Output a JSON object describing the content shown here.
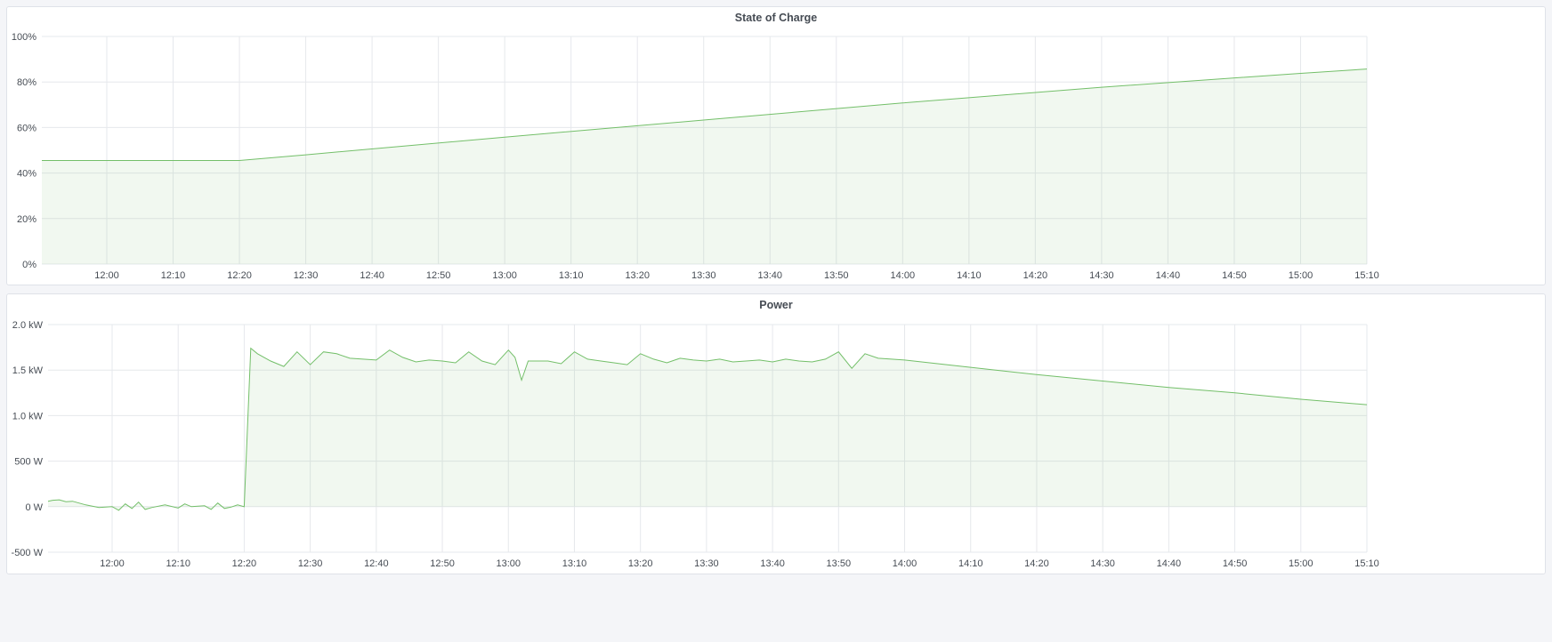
{
  "colors": {
    "line": "#73bf69",
    "fill": "rgba(115,191,105,0.10)",
    "grid": "#e6e8ec",
    "background": "#f4f5f8"
  },
  "chart_data": [
    {
      "type": "area",
      "title": "State of Charge",
      "xlabel": "",
      "ylabel": "",
      "grid": true,
      "xlim": [
        "11:50",
        "15:10"
      ],
      "ylim": [
        0,
        100
      ],
      "y_ticks": [
        "0%",
        "20%",
        "40%",
        "60%",
        "80%",
        "100%"
      ],
      "y_tick_values": [
        0,
        20,
        40,
        60,
        80,
        100
      ],
      "x_ticks": [
        "12:00",
        "12:10",
        "12:20",
        "12:30",
        "12:40",
        "12:50",
        "13:00",
        "13:10",
        "13:20",
        "13:30",
        "13:40",
        "13:50",
        "14:00",
        "14:10",
        "14:20",
        "14:30",
        "14:40",
        "14:50",
        "15:00",
        "15:10"
      ],
      "series": [
        {
          "x": [
            "11:50",
            "12:20",
            "12:30",
            "13:00",
            "13:30",
            "14:00",
            "14:30",
            "15:00",
            "15:10"
          ],
          "y": [
            45.5,
            45.5,
            48.0,
            55.8,
            63.3,
            70.8,
            77.7,
            83.8,
            85.7
          ]
        }
      ]
    },
    {
      "type": "area",
      "title": "Power",
      "xlabel": "",
      "ylabel": "",
      "grid": true,
      "xlim": [
        "11:50",
        "15:10"
      ],
      "ylim": [
        -500,
        2000
      ],
      "y_ticks": [
        "-500 W",
        "0 W",
        "500 W",
        "1.0 kW",
        "1.5 kW",
        "2.0 kW"
      ],
      "y_tick_values": [
        -500,
        0,
        500,
        1000,
        1500,
        2000
      ],
      "x_ticks": [
        "12:00",
        "12:10",
        "12:20",
        "12:30",
        "12:40",
        "12:50",
        "13:00",
        "13:10",
        "13:20",
        "13:30",
        "13:40",
        "13:50",
        "14:00",
        "14:10",
        "14:20",
        "14:30",
        "14:40",
        "14:50",
        "15:00",
        "15:10"
      ],
      "series": [
        {
          "x": [
            "11:50",
            "11:51",
            "11:52",
            "11:53",
            "11:54",
            "11:56",
            "11:58",
            "12:00",
            "12:01",
            "12:02",
            "12:03",
            "12:04",
            "12:05",
            "12:06",
            "12:08",
            "12:10",
            "12:11",
            "12:12",
            "12:14",
            "12:15",
            "12:16",
            "12:17",
            "12:18",
            "12:19",
            "12:20",
            "12:21",
            "12:22",
            "12:24",
            "12:26",
            "12:28",
            "12:30",
            "12:32",
            "12:34",
            "12:36",
            "12:38",
            "12:40",
            "12:42",
            "12:44",
            "12:46",
            "12:48",
            "12:50",
            "12:52",
            "12:54",
            "12:56",
            "12:58",
            "13:00",
            "13:01",
            "13:02",
            "13:03",
            "13:06",
            "13:08",
            "13:10",
            "13:12",
            "13:14",
            "13:16",
            "13:18",
            "13:20",
            "13:22",
            "13:24",
            "13:26",
            "13:28",
            "13:30",
            "13:32",
            "13:34",
            "13:36",
            "13:38",
            "13:40",
            "13:42",
            "13:44",
            "13:46",
            "13:48",
            "13:50",
            "13:52",
            "13:54",
            "13:56",
            "13:58",
            "14:00",
            "14:10",
            "14:20",
            "14:30",
            "14:40",
            "14:50",
            "15:00",
            "15:10"
          ],
          "y": [
            60,
            70,
            75,
            55,
            60,
            20,
            -10,
            0,
            -40,
            30,
            -20,
            50,
            -30,
            -10,
            20,
            -15,
            30,
            0,
            10,
            -30,
            40,
            -20,
            -5,
            20,
            0,
            1740,
            1680,
            1600,
            1540,
            1700,
            1560,
            1700,
            1680,
            1630,
            1620,
            1610,
            1720,
            1640,
            1590,
            1610,
            1600,
            1580,
            1700,
            1600,
            1560,
            1720,
            1640,
            1390,
            1600,
            1600,
            1570,
            1700,
            1620,
            1600,
            1580,
            1560,
            1680,
            1620,
            1580,
            1630,
            1610,
            1600,
            1620,
            1590,
            1600,
            1610,
            1590,
            1620,
            1600,
            1590,
            1620,
            1700,
            1520,
            1680,
            1630,
            1620,
            1610,
            1530,
            1450,
            1380,
            1310,
            1250,
            1180,
            1120
          ]
        }
      ]
    }
  ]
}
